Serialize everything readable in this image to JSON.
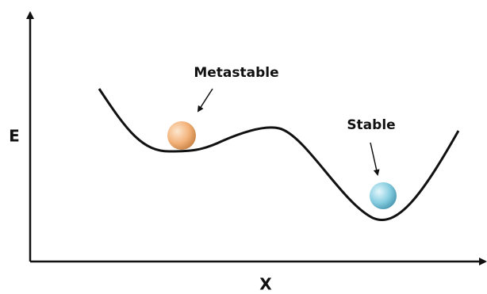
{
  "axes": {
    "y_label": "E",
    "x_label": "X"
  },
  "annotations": {
    "metastable": "Metastable",
    "stable": "Stable"
  }
}
